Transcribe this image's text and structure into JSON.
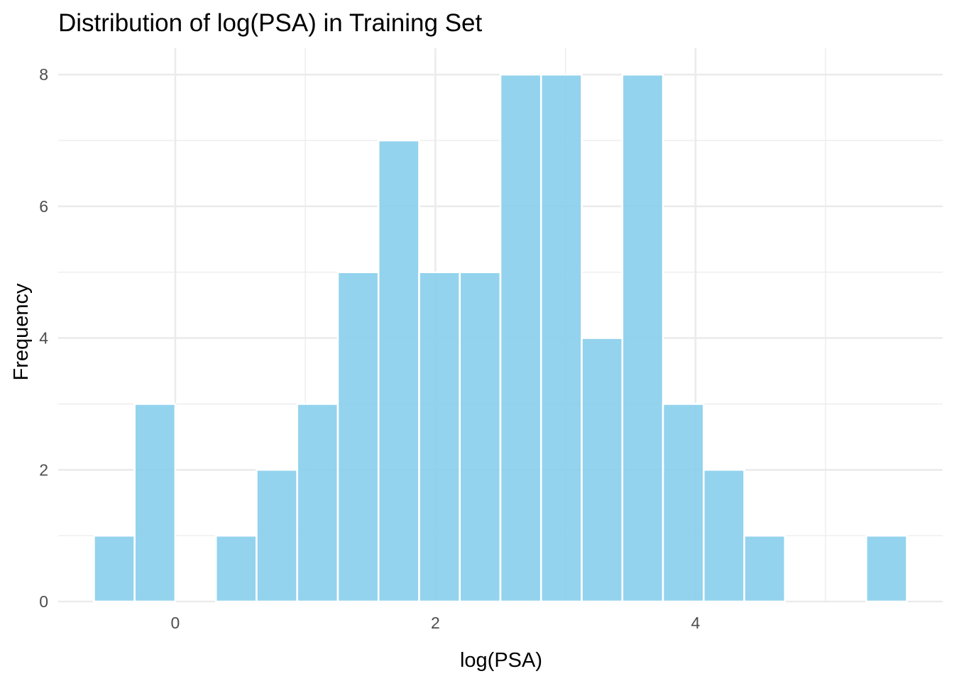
{
  "chart_data": {
    "type": "bar",
    "title": "Distribution of log(PSA) in Training Set",
    "xlabel": "log(PSA)",
    "ylabel": "Frequency",
    "bin_width": 0.3125,
    "bins": [
      {
        "start": -0.625,
        "end": -0.3125,
        "count": 1
      },
      {
        "start": -0.3125,
        "end": 0.0,
        "count": 3
      },
      {
        "start": 0.0,
        "end": 0.3125,
        "count": 0
      },
      {
        "start": 0.3125,
        "end": 0.625,
        "count": 1
      },
      {
        "start": 0.625,
        "end": 0.9375,
        "count": 2
      },
      {
        "start": 0.9375,
        "end": 1.25,
        "count": 3
      },
      {
        "start": 1.25,
        "end": 1.5625,
        "count": 5
      },
      {
        "start": 1.5625,
        "end": 1.875,
        "count": 7
      },
      {
        "start": 1.875,
        "end": 2.1875,
        "count": 5
      },
      {
        "start": 2.1875,
        "end": 2.5,
        "count": 5
      },
      {
        "start": 2.5,
        "end": 2.8125,
        "count": 8
      },
      {
        "start": 2.8125,
        "end": 3.125,
        "count": 8
      },
      {
        "start": 3.125,
        "end": 3.4375,
        "count": 4
      },
      {
        "start": 3.4375,
        "end": 3.75,
        "count": 8
      },
      {
        "start": 3.75,
        "end": 4.0625,
        "count": 3
      },
      {
        "start": 4.0625,
        "end": 4.375,
        "count": 2
      },
      {
        "start": 4.375,
        "end": 4.6875,
        "count": 1
      },
      {
        "start": 4.6875,
        "end": 5.0,
        "count": 0
      },
      {
        "start": 5.0,
        "end": 5.3125,
        "count": 0
      },
      {
        "start": 5.3125,
        "end": 5.625,
        "count": 1
      }
    ],
    "xlim": [
      -0.9,
      5.9
    ],
    "ylim": [
      0,
      8.4
    ],
    "x_ticks": [
      0,
      2,
      4
    ],
    "x_tick_labels": [
      "0",
      "2",
      "4"
    ],
    "y_ticks": [
      0,
      2,
      4,
      6,
      8
    ],
    "y_tick_labels": [
      "0",
      "2",
      "4",
      "6",
      "8"
    ],
    "bar_color": "#87CEEB",
    "bar_outline_color": "#ffffff",
    "grid": true,
    "legend": "none"
  }
}
